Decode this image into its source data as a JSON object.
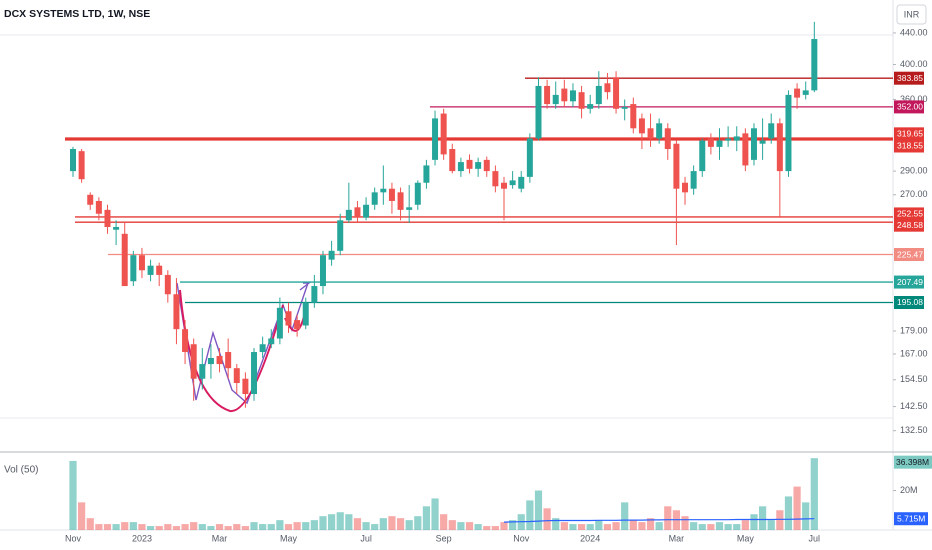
{
  "chart_data": [
    {
      "type": "candlestick",
      "title": "DCX SYSTEMS LTD, 1W, NSE",
      "currency": "INR",
      "log_scale": true,
      "up_color": "#26a69a",
      "down_color": "#ef5350",
      "ylim": [
        125,
        486
      ],
      "yticks": [
        {
          "value": 440,
          "label": "440.00"
        },
        {
          "value": 400,
          "label": "400.00"
        },
        {
          "value": 360,
          "label": "360.00"
        },
        {
          "value": 290,
          "label": "290.00"
        },
        {
          "value": 270,
          "label": "270.00"
        },
        {
          "value": 179,
          "label": "179.00"
        },
        {
          "value": 167,
          "label": "167.00"
        },
        {
          "value": 154.5,
          "label": "154.50"
        },
        {
          "value": 142.5,
          "label": "142.50"
        },
        {
          "value": 132.5,
          "label": "132.50"
        }
      ],
      "hlines": [
        {
          "value": 383.85,
          "color": "#b71c1c"
        },
        {
          "value": 352,
          "label": "352.00",
          "color": "#c2185b"
        },
        {
          "value": 319.65,
          "color": "#e53935"
        },
        {
          "value": 318.55,
          "color": "#e53935"
        },
        {
          "value": 252.55,
          "color": "#e53935"
        },
        {
          "value": 248.58,
          "color": "#e53935"
        },
        {
          "value": 225.47,
          "color": "#f28b82"
        },
        {
          "value": 207.49,
          "color": "#26a69a"
        },
        {
          "value": 195.08,
          "color": "#00897b"
        }
      ],
      "categories": [
        "Nov",
        null,
        null,
        null,
        null,
        null,
        null,
        null,
        "2023",
        null,
        null,
        null,
        null,
        null,
        null,
        null,
        null,
        "Mar",
        null,
        null,
        null,
        null,
        null,
        null,
        null,
        "May",
        null,
        null,
        null,
        null,
        null,
        null,
        null,
        null,
        "Jul",
        null,
        null,
        null,
        null,
        null,
        null,
        null,
        null,
        "Sep",
        null,
        null,
        null,
        null,
        null,
        null,
        null,
        null,
        "Nov",
        null,
        null,
        null,
        null,
        null,
        null,
        null,
        "2024",
        null,
        null,
        null,
        null,
        null,
        null,
        null,
        null,
        null,
        "Mar",
        null,
        null,
        null,
        null,
        null,
        null,
        null,
        "May",
        null,
        null,
        null,
        null,
        null,
        null,
        null,
        "Jul"
      ],
      "ohlc": [
        [
          290,
          312,
          285,
          310
        ],
        [
          308,
          310,
          280,
          283
        ],
        [
          270,
          272,
          258,
          262
        ],
        [
          265,
          268,
          250,
          255
        ],
        [
          258,
          262,
          240,
          245
        ],
        [
          243,
          250,
          232,
          245
        ],
        [
          240,
          248,
          205,
          205
        ],
        [
          208,
          228,
          205,
          225
        ],
        [
          225,
          230,
          210,
          215
        ],
        [
          212,
          222,
          208,
          218
        ],
        [
          218,
          220,
          205,
          212
        ],
        [
          212,
          215,
          195,
          200
        ],
        [
          200,
          210,
          172,
          180
        ],
        [
          180,
          185,
          162,
          168
        ],
        [
          172,
          175,
          145,
          155
        ],
        [
          155,
          170,
          150,
          162
        ],
        [
          162,
          172,
          155,
          165
        ],
        [
          166,
          170,
          158,
          162
        ],
        [
          168,
          175,
          155,
          160
        ],
        [
          160,
          162,
          148,
          153
        ],
        [
          155,
          158,
          142,
          148
        ],
        [
          148,
          170,
          145,
          168
        ],
        [
          168,
          176,
          165,
          172
        ],
        [
          172,
          180,
          170,
          175
        ],
        [
          175,
          198,
          172,
          192
        ],
        [
          190,
          195,
          178,
          182
        ],
        [
          185,
          188,
          176,
          180
        ],
        [
          182,
          198,
          180,
          195
        ],
        [
          195,
          212,
          192,
          205
        ],
        [
          205,
          228,
          200,
          225
        ],
        [
          222,
          235,
          218,
          228
        ],
        [
          228,
          255,
          225,
          250
        ],
        [
          250,
          280,
          248,
          258
        ],
        [
          260,
          265,
          248,
          252
        ],
        [
          252,
          268,
          250,
          262
        ],
        [
          262,
          276,
          258,
          272
        ],
        [
          272,
          295,
          262,
          275
        ],
        [
          275,
          280,
          255,
          265
        ],
        [
          272,
          276,
          250,
          258
        ],
        [
          258,
          278,
          248,
          260
        ],
        [
          262,
          282,
          258,
          280
        ],
        [
          280,
          300,
          275,
          295
        ],
        [
          300,
          348,
          295,
          340
        ],
        [
          345,
          350,
          300,
          305
        ],
        [
          310,
          315,
          288,
          290
        ],
        [
          290,
          302,
          285,
          298
        ],
        [
          300,
          305,
          288,
          292
        ],
        [
          292,
          302,
          285,
          298
        ],
        [
          300,
          303,
          285,
          290
        ],
        [
          290,
          295,
          272,
          277
        ],
        [
          280,
          285,
          250,
          275
        ],
        [
          278,
          290,
          275,
          282
        ],
        [
          275,
          290,
          272,
          285
        ],
        [
          285,
          325,
          280,
          320
        ],
        [
          320,
          385,
          318,
          375
        ],
        [
          375,
          382,
          350,
          355
        ],
        [
          355,
          380,
          350,
          365
        ],
        [
          372,
          382,
          352,
          358
        ],
        [
          358,
          378,
          352,
          370
        ],
        [
          368,
          375,
          340,
          350
        ],
        [
          350,
          365,
          345,
          355
        ],
        [
          355,
          392,
          350,
          375
        ],
        [
          378,
          390,
          360,
          368
        ],
        [
          385,
          392,
          345,
          350
        ],
        [
          350,
          360,
          338,
          352
        ],
        [
          355,
          362,
          325,
          330
        ],
        [
          340,
          345,
          310,
          325
        ],
        [
          330,
          345,
          312,
          320
        ],
        [
          320,
          340,
          315,
          335
        ],
        [
          330,
          335,
          300,
          310
        ],
        [
          315,
          318,
          232,
          275
        ],
        [
          280,
          285,
          262,
          272
        ],
        [
          275,
          295,
          270,
          290
        ],
        [
          290,
          320,
          285,
          318
        ],
        [
          320,
          325,
          305,
          312
        ],
        [
          312,
          330,
          300,
          318
        ],
        [
          318,
          332,
          312,
          320
        ],
        [
          318,
          332,
          308,
          322
        ],
        [
          325,
          330,
          290,
          295
        ],
        [
          300,
          335,
          295,
          330
        ],
        [
          315,
          340,
          300,
          318
        ],
        [
          320,
          345,
          315,
          335
        ],
        [
          335,
          340,
          252,
          290
        ],
        [
          290,
          370,
          285,
          365
        ],
        [
          372,
          378,
          350,
          362
        ],
        [
          365,
          380,
          360,
          370
        ],
        [
          370,
          455,
          368,
          432
        ]
      ]
    },
    {
      "type": "bar",
      "title": "Vol (50)",
      "ylim": [
        0,
        38
      ],
      "yticks": [
        {
          "value": 20,
          "label": "20M"
        }
      ],
      "values": [
        35,
        14,
        6,
        3,
        3,
        3,
        4,
        4,
        3,
        2,
        2,
        3,
        2,
        3,
        4,
        3,
        2,
        3,
        2,
        3,
        2,
        4,
        3,
        3,
        5,
        3,
        4,
        4,
        5,
        7,
        8,
        9,
        8,
        6,
        4,
        3,
        6,
        7,
        6,
        5,
        7,
        12,
        16,
        8,
        5,
        4,
        4,
        3,
        2,
        2,
        4,
        5,
        8,
        15,
        20,
        11,
        6,
        4,
        3,
        3,
        3,
        5,
        3,
        4,
        14,
        5,
        4,
        6,
        4,
        12,
        10,
        7,
        4,
        3,
        3,
        4,
        3,
        3,
        5,
        8,
        12,
        5,
        10,
        17,
        22,
        14,
        36.398
      ],
      "value_labels": [
        null,
        null,
        null,
        null,
        null,
        null,
        null,
        null,
        null,
        null,
        null,
        null,
        null,
        null,
        null,
        null,
        null,
        null,
        null,
        null,
        null,
        null,
        null,
        null,
        null,
        null,
        null,
        null,
        null,
        null,
        null,
        null,
        null,
        null,
        null,
        null,
        null,
        null,
        null,
        null,
        null,
        null,
        null,
        null,
        null,
        null,
        null,
        null,
        null,
        null,
        null,
        null,
        null,
        null,
        null,
        null,
        null,
        null,
        null,
        null,
        null,
        null,
        null,
        null,
        null,
        null,
        null,
        null,
        null,
        null,
        null,
        null,
        null,
        null,
        null,
        null,
        null,
        null,
        null,
        null,
        null,
        null,
        null,
        null,
        null,
        null,
        "36.398M"
      ],
      "ma": {
        "color": "#2962ff",
        "values": [
          null,
          null,
          null,
          null,
          null,
          null,
          null,
          null,
          null,
          null,
          null,
          null,
          null,
          null,
          null,
          null,
          null,
          null,
          null,
          null,
          null,
          null,
          null,
          null,
          null,
          null,
          null,
          null,
          null,
          null,
          null,
          null,
          null,
          null,
          null,
          null,
          null,
          null,
          null,
          null,
          null,
          null,
          null,
          null,
          null,
          null,
          null,
          null,
          null,
          null,
          4.0,
          4.1,
          4.2,
          4.3,
          4.5,
          4.7,
          4.8,
          4.8,
          4.8,
          4.8,
          4.8,
          4.9,
          4.9,
          4.9,
          5.0,
          5.0,
          5.0,
          5.1,
          5.1,
          5.2,
          5.2,
          5.2,
          5.2,
          5.2,
          5.2,
          5.2,
          5.2,
          5.3,
          5.3,
          5.3,
          5.3,
          5.3,
          5.4,
          5.4,
          5.5,
          5.6,
          5.715
        ],
        "value_labels": [
          null,
          null,
          null,
          null,
          null,
          null,
          null,
          null,
          null,
          null,
          null,
          null,
          null,
          null,
          null,
          null,
          null,
          null,
          null,
          null,
          null,
          null,
          null,
          null,
          null,
          null,
          null,
          null,
          null,
          null,
          null,
          null,
          null,
          null,
          null,
          null,
          null,
          null,
          null,
          null,
          null,
          null,
          null,
          null,
          null,
          null,
          null,
          null,
          null,
          null,
          null,
          null,
          null,
          null,
          null,
          null,
          null,
          null,
          null,
          null,
          null,
          null,
          null,
          null,
          null,
          null,
          null,
          null,
          null,
          null,
          null,
          null,
          null,
          null,
          null,
          null,
          null,
          null,
          null,
          null,
          null,
          null,
          null,
          null,
          null,
          null,
          "5.715M"
        ]
      }
    }
  ]
}
